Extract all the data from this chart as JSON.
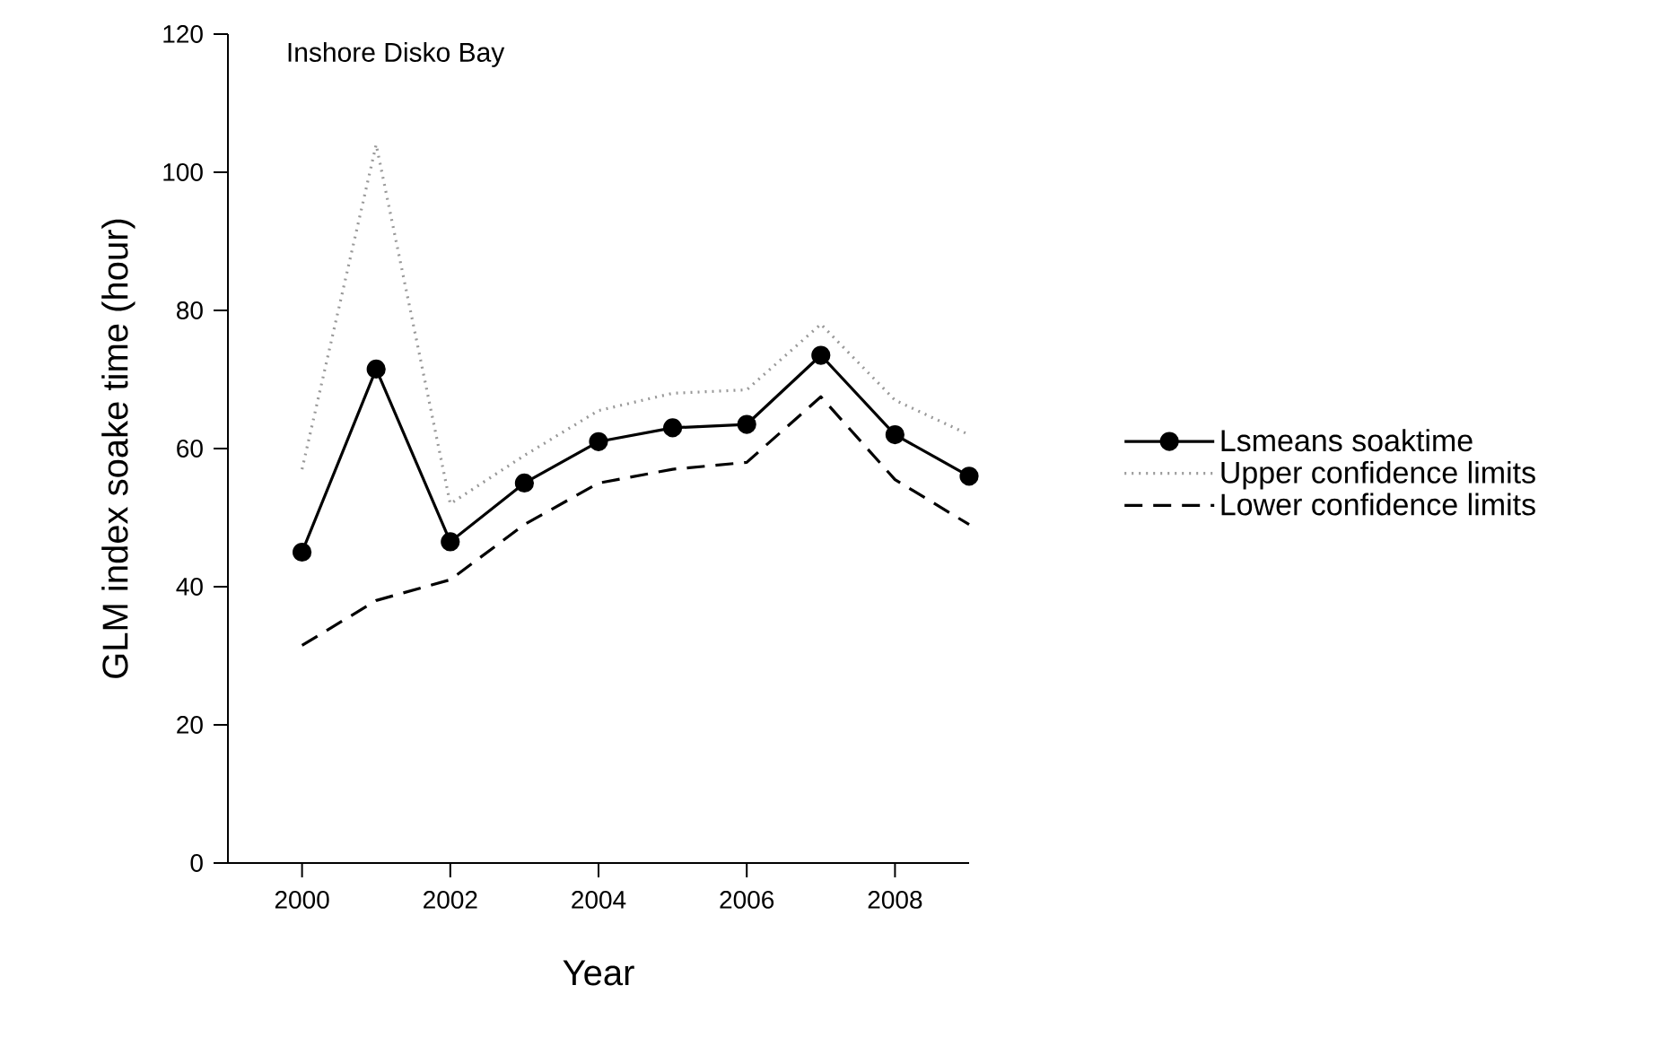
{
  "chart_data": {
    "type": "line",
    "title": "Inshore Disko Bay",
    "xlabel": "Year",
    "ylabel": "GLM index soake time (hour)",
    "x": [
      2000,
      2001,
      2002,
      2003,
      2004,
      2005,
      2006,
      2007,
      2008,
      2009
    ],
    "series": [
      {
        "name": "Lsmeans soaktime",
        "color": "#000000",
        "marker": "circle",
        "line_style": "solid",
        "values": [
          45,
          71.5,
          46.5,
          55,
          61,
          63,
          63.5,
          73.5,
          62,
          56
        ]
      },
      {
        "name": "Upper confidence limits",
        "color": "#999999",
        "marker": "none",
        "line_style": "dotted",
        "values": [
          57,
          104,
          52,
          59,
          65.5,
          68,
          68.5,
          78,
          67,
          62
        ]
      },
      {
        "name": "Lower confidence limits",
        "color": "#000000",
        "marker": "none",
        "line_style": "dashed",
        "values": [
          31.5,
          38,
          41,
          49,
          55,
          57,
          58,
          67.5,
          55.5,
          49
        ]
      }
    ],
    "xlim": [
      1999,
      2009
    ],
    "ylim": [
      0,
      120
    ],
    "xticks": [
      2000,
      2002,
      2004,
      2006,
      2008
    ],
    "yticks": [
      0,
      20,
      40,
      60,
      80,
      100,
      120
    ],
    "grid": false,
    "legend": "right"
  }
}
